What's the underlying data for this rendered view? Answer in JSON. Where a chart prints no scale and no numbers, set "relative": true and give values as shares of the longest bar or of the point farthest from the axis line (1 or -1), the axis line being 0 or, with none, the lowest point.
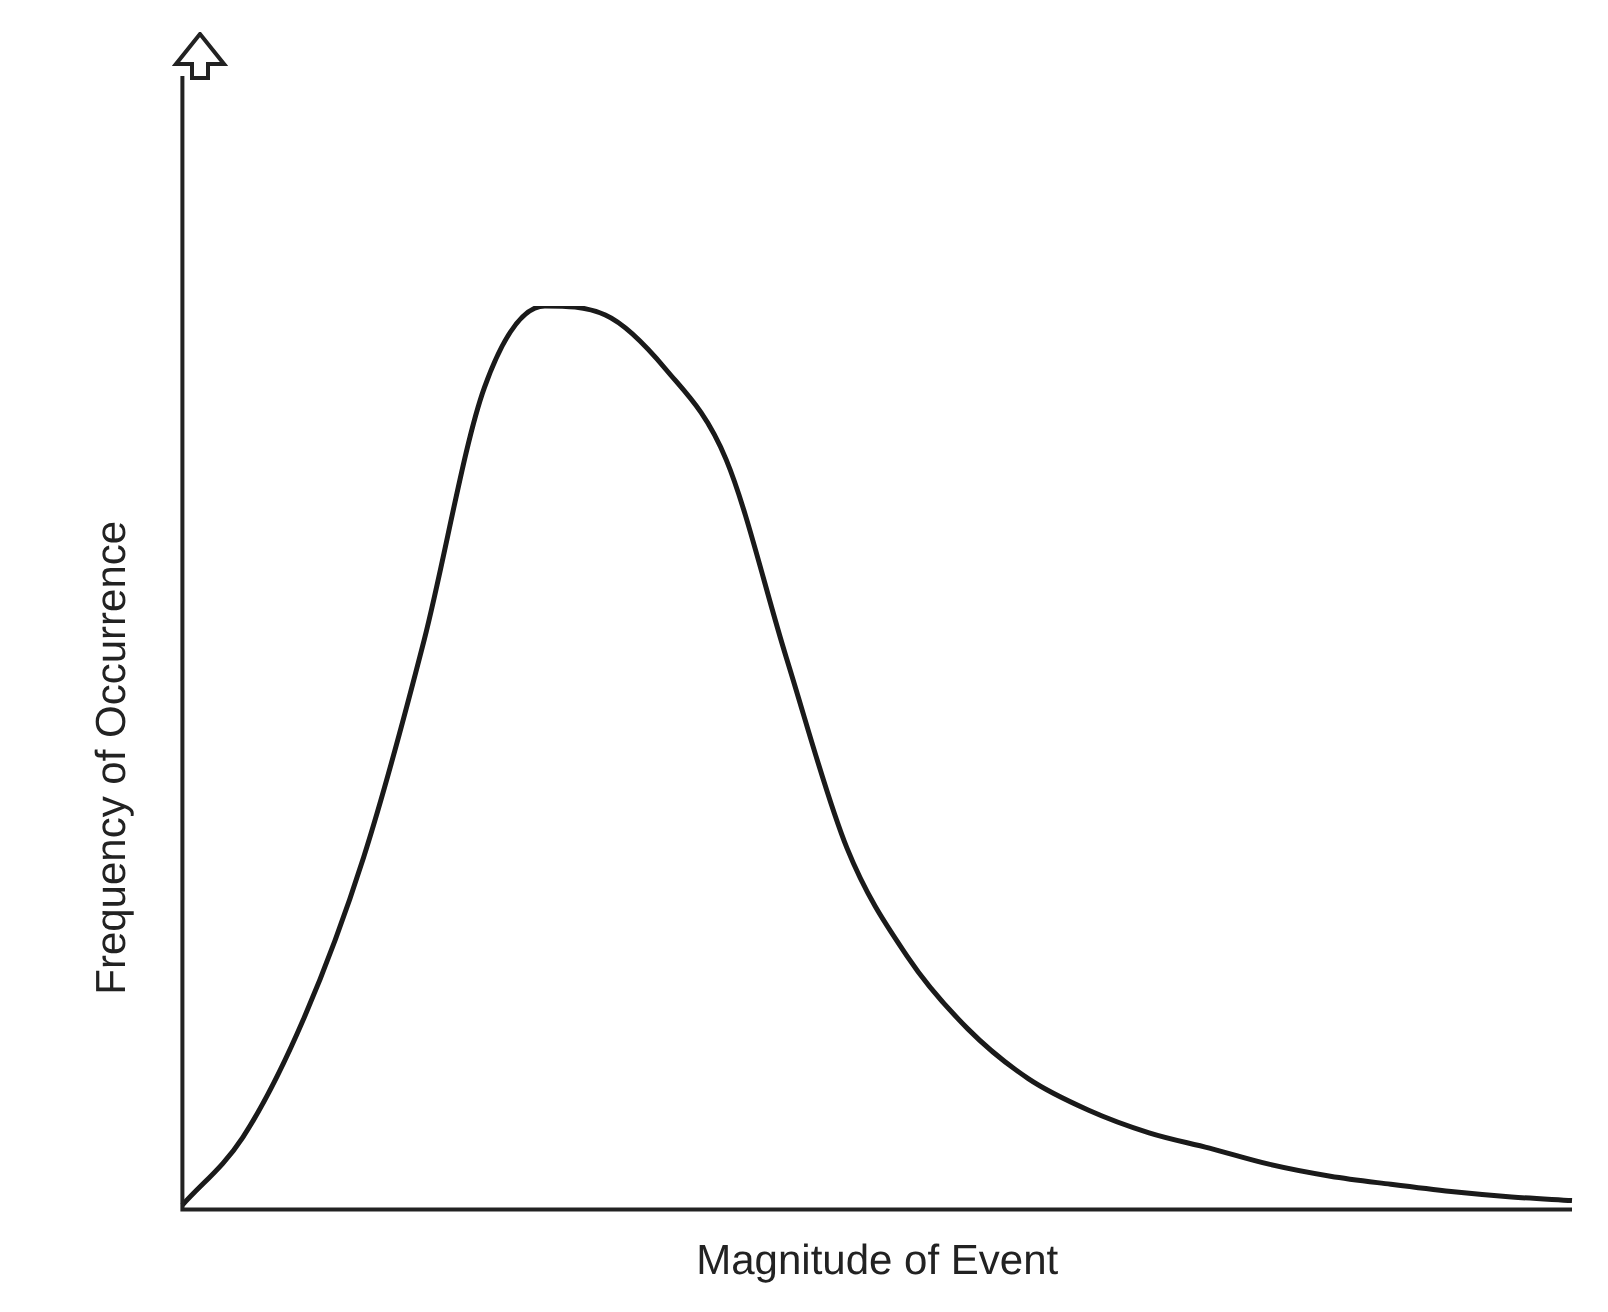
{
  "chart_data": {
    "type": "line",
    "xlabel": "Magnitude of Event",
    "ylabel": "Frequency of Occurrence",
    "relative": true,
    "grid": false,
    "legend": false,
    "marker": "none",
    "line_style": "solid",
    "categories": [
      null,
      null,
      null,
      null,
      null,
      null,
      null,
      null,
      null,
      null,
      null,
      null,
      null,
      null,
      null,
      null,
      null,
      null,
      null,
      null,
      null,
      null,
      null,
      null
    ],
    "series": [
      {
        "color": "#1a1a1a",
        "values": [
          0.005,
          0.08,
          0.21,
          0.39,
          0.63,
          0.91,
          1,
          0.99,
          0.93,
          0.83,
          0.61,
          0.4,
          0.28,
          0.2,
          0.145,
          0.11,
          0.085,
          0.068,
          0.05,
          0.037,
          0.028,
          0.02,
          0.014,
          0.01
        ]
      }
    ]
  }
}
